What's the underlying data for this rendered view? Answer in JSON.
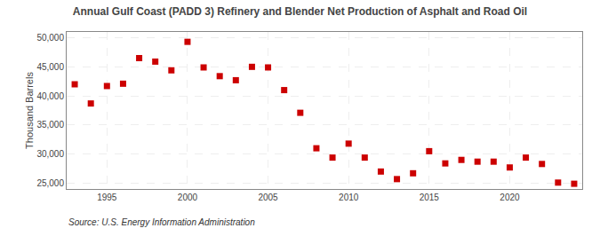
{
  "chart_data": {
    "type": "scatter",
    "title": "Annual Gulf Coast (PADD 3) Refinery and Blender Net Production of Asphalt and Road Oil",
    "ylabel": "Thousand Barrels",
    "annotations": [
      "Source: U.S. Energy Information Administration"
    ],
    "x": [
      1993,
      1994,
      1995,
      1996,
      1997,
      1998,
      1999,
      2000,
      2001,
      2002,
      2003,
      2004,
      2005,
      2006,
      2007,
      2008,
      2009,
      2010,
      2011,
      2012,
      2013,
      2014,
      2015,
      2016,
      2017,
      2018,
      2019,
      2020,
      2021,
      2022,
      2023,
      2024
    ],
    "values": [
      42000,
      38700,
      41700,
      42100,
      46500,
      45900,
      44400,
      49300,
      44900,
      43400,
      42700,
      45000,
      44900,
      41000,
      37100,
      31000,
      29400,
      31800,
      29400,
      27000,
      25700,
      26700,
      30500,
      28400,
      29000,
      28700,
      28700,
      27700,
      29400,
      28300,
      25100,
      24900
    ],
    "color": "#cc0000",
    "marker": "square",
    "xlim": [
      1992.5,
      2024.5
    ],
    "xticks": [
      1995,
      2000,
      2005,
      2010,
      2015,
      2020
    ],
    "ylim": [
      24000,
      51000
    ],
    "yticks": [
      {
        "value": 25000,
        "label": "25,000"
      },
      {
        "value": 30000,
        "label": "30,000"
      },
      {
        "value": 35000,
        "label": "35,000"
      },
      {
        "value": 40000,
        "label": "40,000"
      },
      {
        "value": 45000,
        "label": "45,000"
      },
      {
        "value": 50000,
        "label": "50,000"
      }
    ],
    "grid": true
  }
}
